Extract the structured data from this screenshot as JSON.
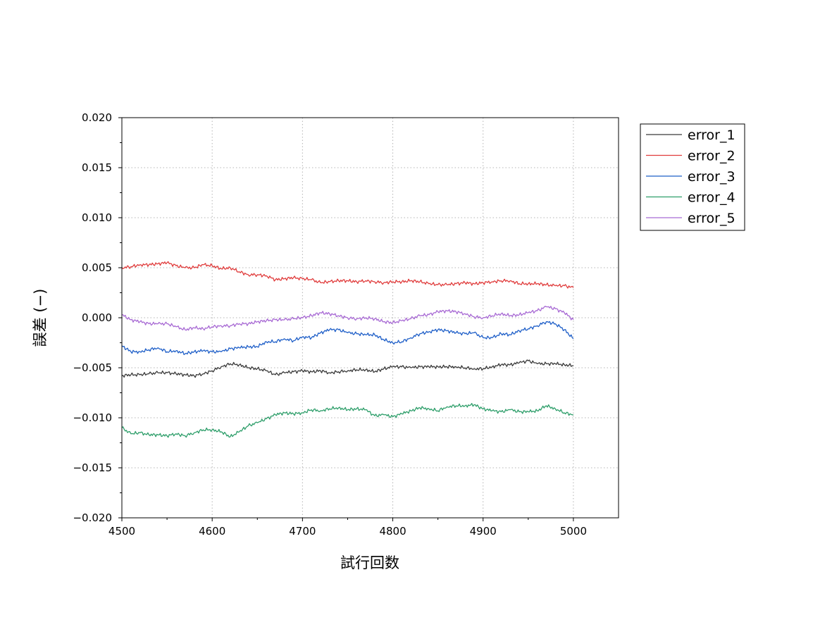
{
  "chart_data": {
    "type": "line",
    "xlabel": "試行回数",
    "ylabel": "誤差 (−)",
    "xlim": [
      4500,
      5050
    ],
    "ylim": [
      -0.02,
      0.02
    ],
    "xticks": [
      4500,
      4600,
      4700,
      4800,
      4900,
      5000
    ],
    "xtick_labels": [
      "4500",
      "4600",
      "4700",
      "4800",
      "4900",
      "5000"
    ],
    "yticks": [
      0.02,
      0.015,
      0.01,
      0.005,
      0.0,
      -0.005,
      -0.01,
      -0.015,
      -0.02
    ],
    "ytick_labels": [
      "0.020",
      "0.015",
      "0.010",
      "0.005",
      "0.000",
      "−0.005",
      "−0.010",
      "−0.015",
      "−0.020"
    ],
    "grid": true,
    "legend_position": "outside-top-right",
    "x": [
      4500,
      4510,
      4520,
      4530,
      4540,
      4550,
      4560,
      4570,
      4580,
      4590,
      4600,
      4610,
      4620,
      4630,
      4640,
      4650,
      4660,
      4670,
      4680,
      4690,
      4700,
      4710,
      4720,
      4730,
      4740,
      4750,
      4760,
      4770,
      4780,
      4790,
      4800,
      4810,
      4820,
      4830,
      4840,
      4850,
      4860,
      4870,
      4880,
      4890,
      4900,
      4910,
      4920,
      4930,
      4940,
      4950,
      4960,
      4970,
      4980,
      4990,
      5000
    ],
    "series": [
      {
        "name": "error_1",
        "color": "#3a3a3a",
        "values": [
          -0.0058,
          -0.0057,
          -0.0057,
          -0.0056,
          -0.0055,
          -0.0055,
          -0.0056,
          -0.0057,
          -0.0058,
          -0.0056,
          -0.0053,
          -0.0049,
          -0.0046,
          -0.0047,
          -0.005,
          -0.0051,
          -0.0053,
          -0.0057,
          -0.0055,
          -0.0054,
          -0.0053,
          -0.0054,
          -0.0053,
          -0.0055,
          -0.0054,
          -0.0053,
          -0.0052,
          -0.0052,
          -0.0054,
          -0.0051,
          -0.0049,
          -0.0049,
          -0.005,
          -0.0049,
          -0.0049,
          -0.0049,
          -0.0049,
          -0.0049,
          -0.005,
          -0.0051,
          -0.0051,
          -0.0049,
          -0.0047,
          -0.0047,
          -0.0045,
          -0.0043,
          -0.0046,
          -0.0046,
          -0.0046,
          -0.0047,
          -0.0048
        ]
      },
      {
        "name": "error_2",
        "color": "#e03c3c",
        "values": [
          0.005,
          0.0051,
          0.0053,
          0.0053,
          0.0054,
          0.0055,
          0.0052,
          0.005,
          0.005,
          0.0053,
          0.0052,
          0.0049,
          0.005,
          0.0046,
          0.0043,
          0.0043,
          0.0042,
          0.0038,
          0.0039,
          0.004,
          0.0039,
          0.0038,
          0.0035,
          0.0036,
          0.0037,
          0.0037,
          0.0036,
          0.0037,
          0.0036,
          0.0035,
          0.0036,
          0.0036,
          0.0037,
          0.0036,
          0.0034,
          0.0033,
          0.0033,
          0.0034,
          0.0035,
          0.0034,
          0.0035,
          0.0036,
          0.0037,
          0.0037,
          0.0034,
          0.0034,
          0.0034,
          0.0033,
          0.0032,
          0.0032,
          0.003
        ]
      },
      {
        "name": "error_3",
        "color": "#1f5fc8",
        "values": [
          -0.0028,
          -0.0034,
          -0.0034,
          -0.0032,
          -0.003,
          -0.0034,
          -0.0033,
          -0.0036,
          -0.0034,
          -0.0033,
          -0.0034,
          -0.0034,
          -0.0031,
          -0.003,
          -0.0029,
          -0.0029,
          -0.0024,
          -0.0024,
          -0.0021,
          -0.0023,
          -0.0019,
          -0.002,
          -0.0015,
          -0.0012,
          -0.0012,
          -0.0015,
          -0.0016,
          -0.0017,
          -0.0017,
          -0.0022,
          -0.0025,
          -0.0024,
          -0.002,
          -0.0016,
          -0.0014,
          -0.0012,
          -0.0013,
          -0.0015,
          -0.0016,
          -0.0015,
          -0.002,
          -0.002,
          -0.0016,
          -0.0017,
          -0.0013,
          -0.0011,
          -0.0008,
          -0.0004,
          -0.0006,
          -0.0012,
          -0.0021
        ]
      },
      {
        "name": "error_4",
        "color": "#2e9e6a",
        "values": [
          -0.011,
          -0.0116,
          -0.0115,
          -0.0117,
          -0.0117,
          -0.0118,
          -0.0116,
          -0.0118,
          -0.0115,
          -0.0112,
          -0.0112,
          -0.0114,
          -0.0119,
          -0.0114,
          -0.0108,
          -0.0105,
          -0.0101,
          -0.0097,
          -0.0095,
          -0.0096,
          -0.0095,
          -0.0092,
          -0.0093,
          -0.0091,
          -0.009,
          -0.0092,
          -0.0091,
          -0.0092,
          -0.0098,
          -0.0097,
          -0.0099,
          -0.0096,
          -0.0093,
          -0.009,
          -0.0091,
          -0.0093,
          -0.0089,
          -0.0088,
          -0.0088,
          -0.0087,
          -0.0091,
          -0.0093,
          -0.0094,
          -0.0092,
          -0.0094,
          -0.0094,
          -0.0093,
          -0.0088,
          -0.0091,
          -0.0095,
          -0.0097
        ]
      },
      {
        "name": "error_5",
        "color": "#a86ad4",
        "values": [
          0.0003,
          -0.0002,
          -0.0004,
          -0.0006,
          -0.0006,
          -0.0006,
          -0.0009,
          -0.0012,
          -0.001,
          -0.0011,
          -0.0009,
          -0.0008,
          -0.0008,
          -0.0006,
          -0.0006,
          -0.0004,
          -0.0003,
          -0.0002,
          -0.0002,
          -0.0001,
          0.0,
          0.0002,
          0.0005,
          0.0004,
          0.0002,
          0.0,
          -0.0001,
          0.0,
          -0.0001,
          -0.0004,
          -0.0005,
          -0.0003,
          -0.0001,
          0.0002,
          0.0003,
          0.0006,
          0.0007,
          0.0006,
          0.0004,
          0.0001,
          0.0,
          0.0002,
          0.0004,
          0.0002,
          0.0003,
          0.0005,
          0.0007,
          0.0011,
          0.0009,
          0.0005,
          -0.0002
        ]
      }
    ]
  }
}
